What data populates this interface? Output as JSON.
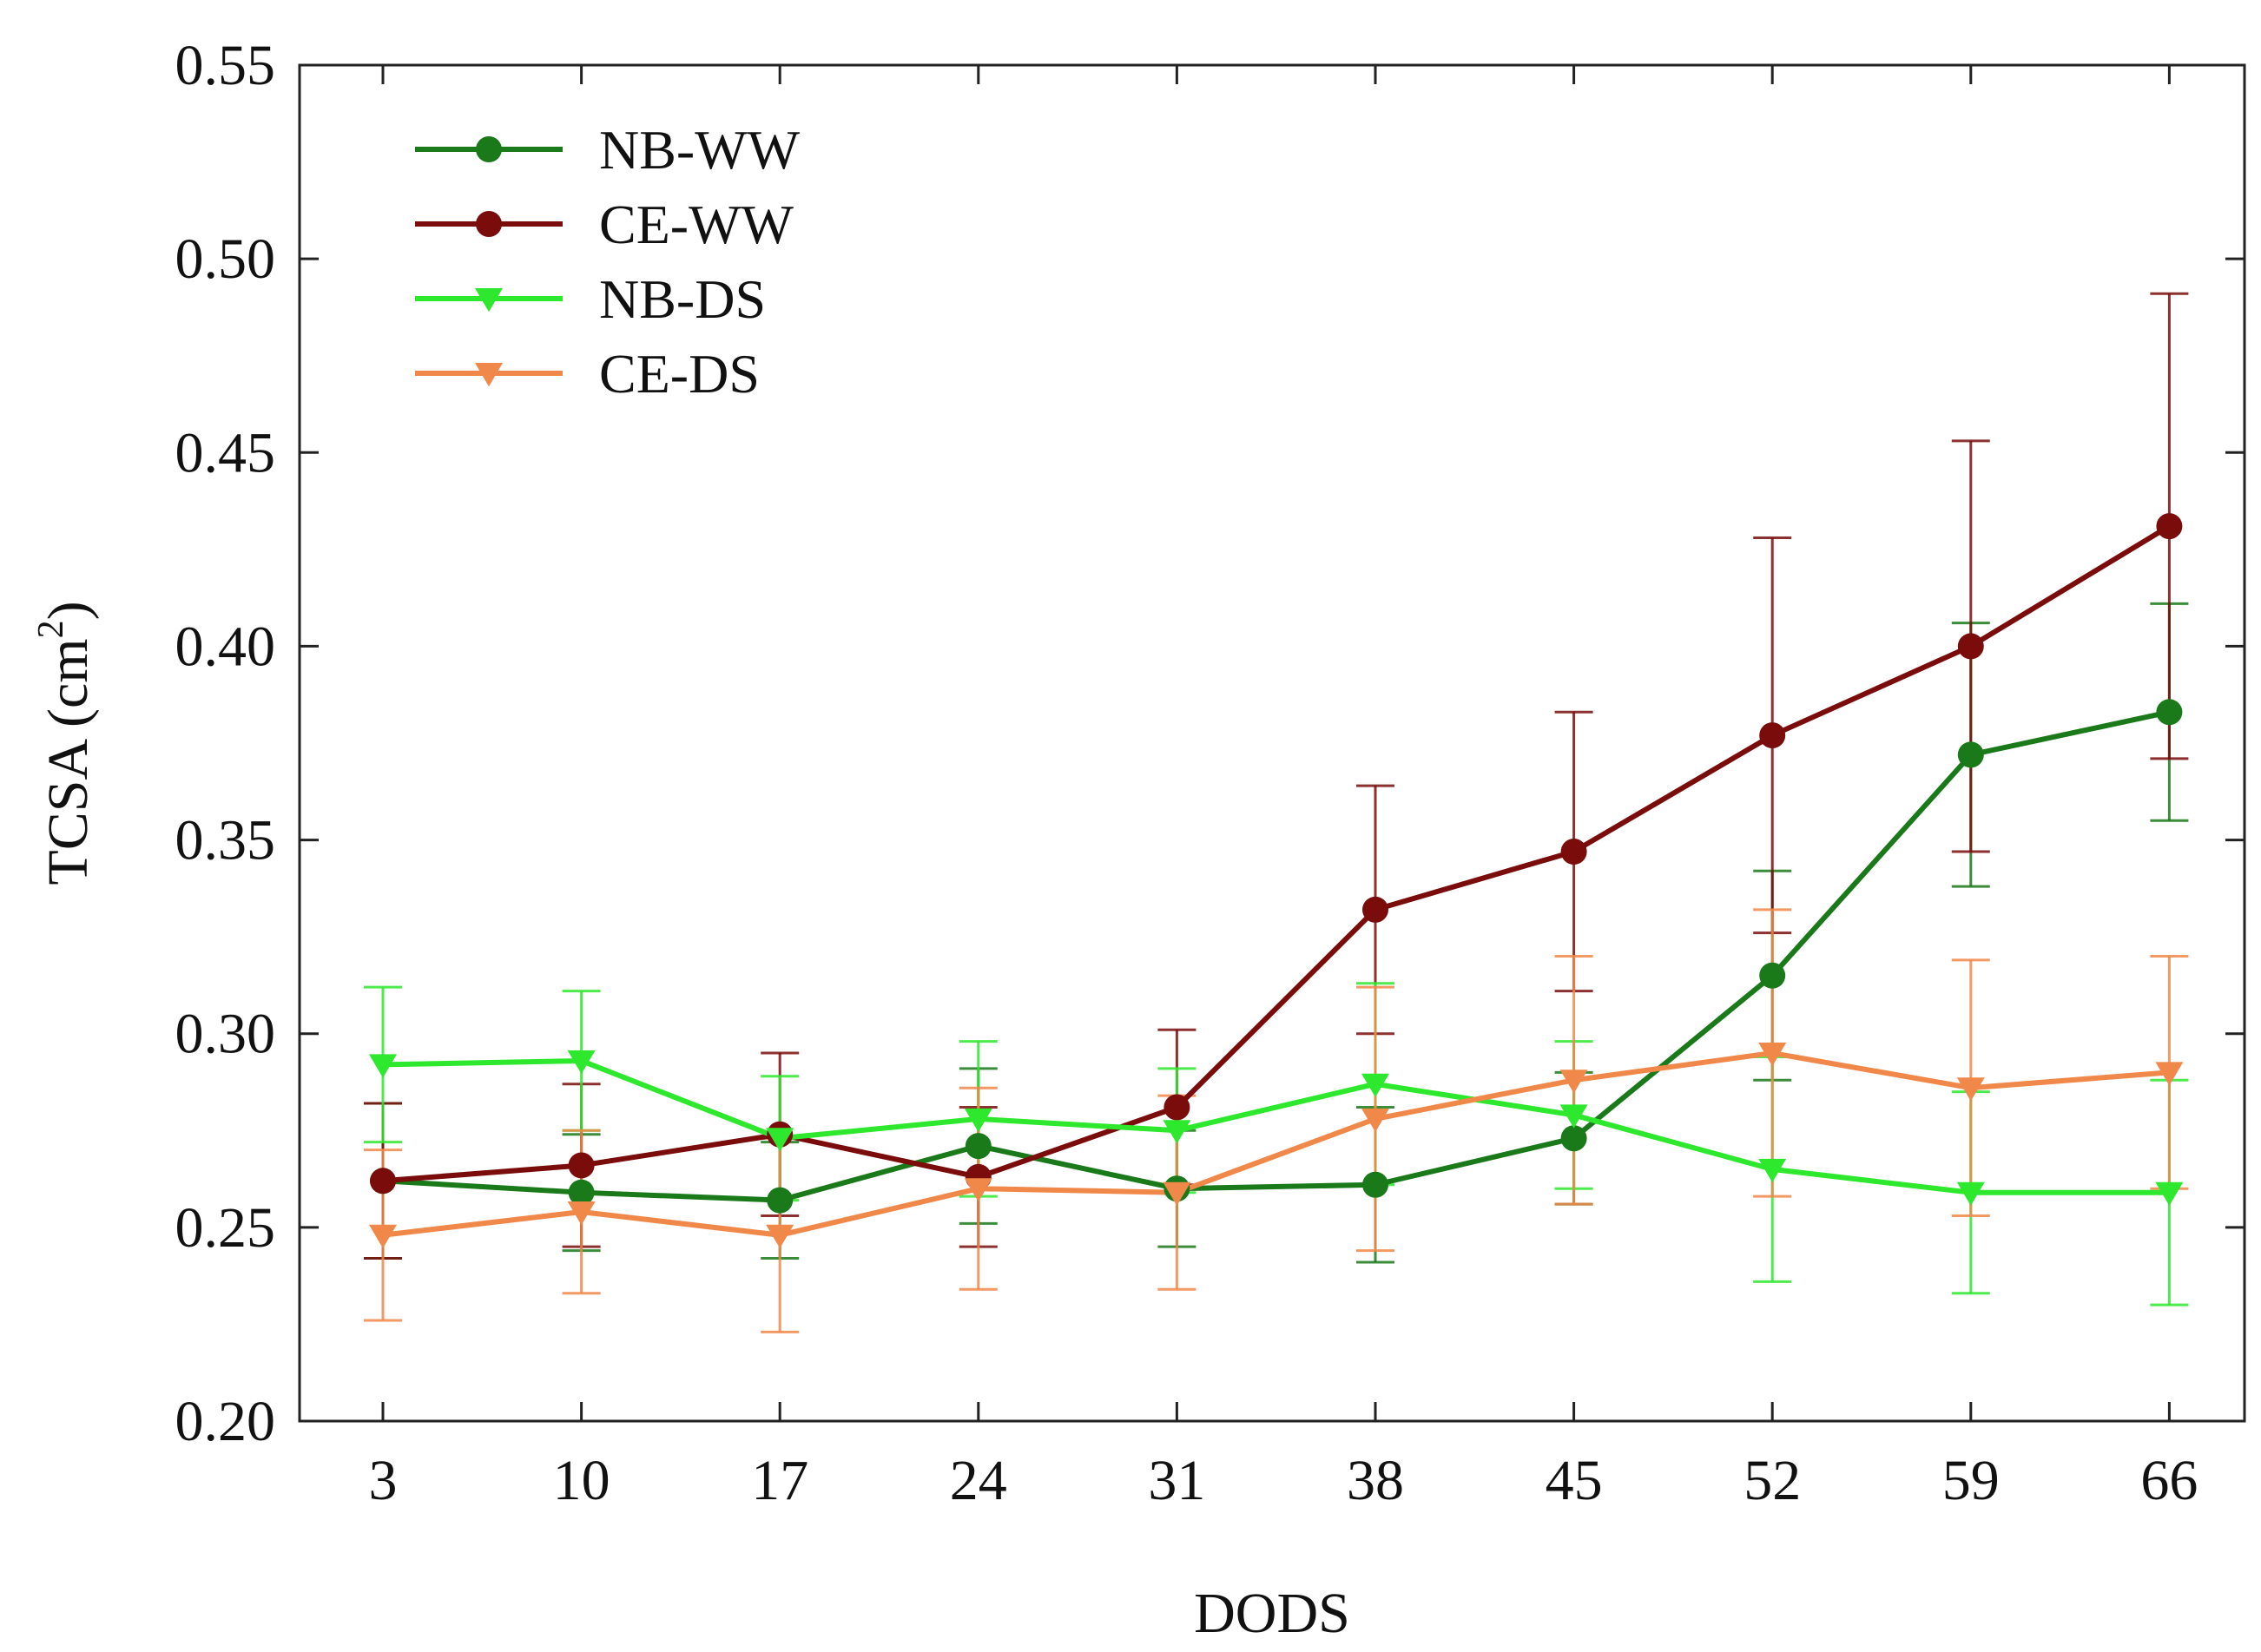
{
  "chart_data": {
    "type": "line",
    "xlabel": "DODS",
    "ylabel": "TCSA (cm",
    "ylabel_superscript": "2",
    "ylabel_suffix": ")",
    "ylim": [
      0.2,
      0.55
    ],
    "yticks": [
      "0.20",
      "0.25",
      "0.30",
      "0.35",
      "0.40",
      "0.45",
      "0.50",
      "0.55"
    ],
    "x": [
      "3",
      "10",
      "17",
      "24",
      "31",
      "38",
      "45",
      "52",
      "59",
      "66"
    ],
    "grid": false,
    "legend_position": "top-left",
    "series": [
      {
        "name": "NB-WW",
        "color": "#1a7a1a",
        "marker": "circle",
        "values": [
          0.262,
          0.259,
          0.257,
          0.271,
          0.26,
          0.261,
          0.273,
          0.315,
          0.372,
          0.383
        ],
        "errors": [
          0.02,
          0.015,
          0.015,
          0.02,
          0.015,
          0.02,
          0.017,
          0.027,
          0.034,
          0.028
        ]
      },
      {
        "name": "CE-WW",
        "color": "#7a0c0c",
        "marker": "circle",
        "values": [
          0.262,
          0.266,
          0.274,
          0.263,
          0.281,
          0.332,
          0.347,
          0.377,
          0.4,
          0.431
        ],
        "errors": [
          0.02,
          0.021,
          0.021,
          0.018,
          0.02,
          0.032,
          0.036,
          0.051,
          0.053,
          0.06
        ]
      },
      {
        "name": "NB-DS",
        "color": "#2ee82e",
        "marker": "triangle-down",
        "values": [
          0.292,
          0.293,
          0.273,
          0.278,
          0.275,
          0.287,
          0.279,
          0.265,
          0.259,
          0.259
        ],
        "errors": [
          0.02,
          0.018,
          0.016,
          0.02,
          0.016,
          0.026,
          0.019,
          0.029,
          0.026,
          0.029
        ]
      },
      {
        "name": "CE-DS",
        "color": "#f0884a",
        "marker": "triangle-down",
        "values": [
          0.248,
          0.254,
          0.248,
          0.26,
          0.259,
          0.278,
          0.288,
          0.295,
          0.286,
          0.29
        ],
        "errors": [
          0.022,
          0.021,
          0.025,
          0.026,
          0.025,
          0.034,
          0.032,
          0.037,
          0.033,
          0.03
        ]
      }
    ]
  }
}
